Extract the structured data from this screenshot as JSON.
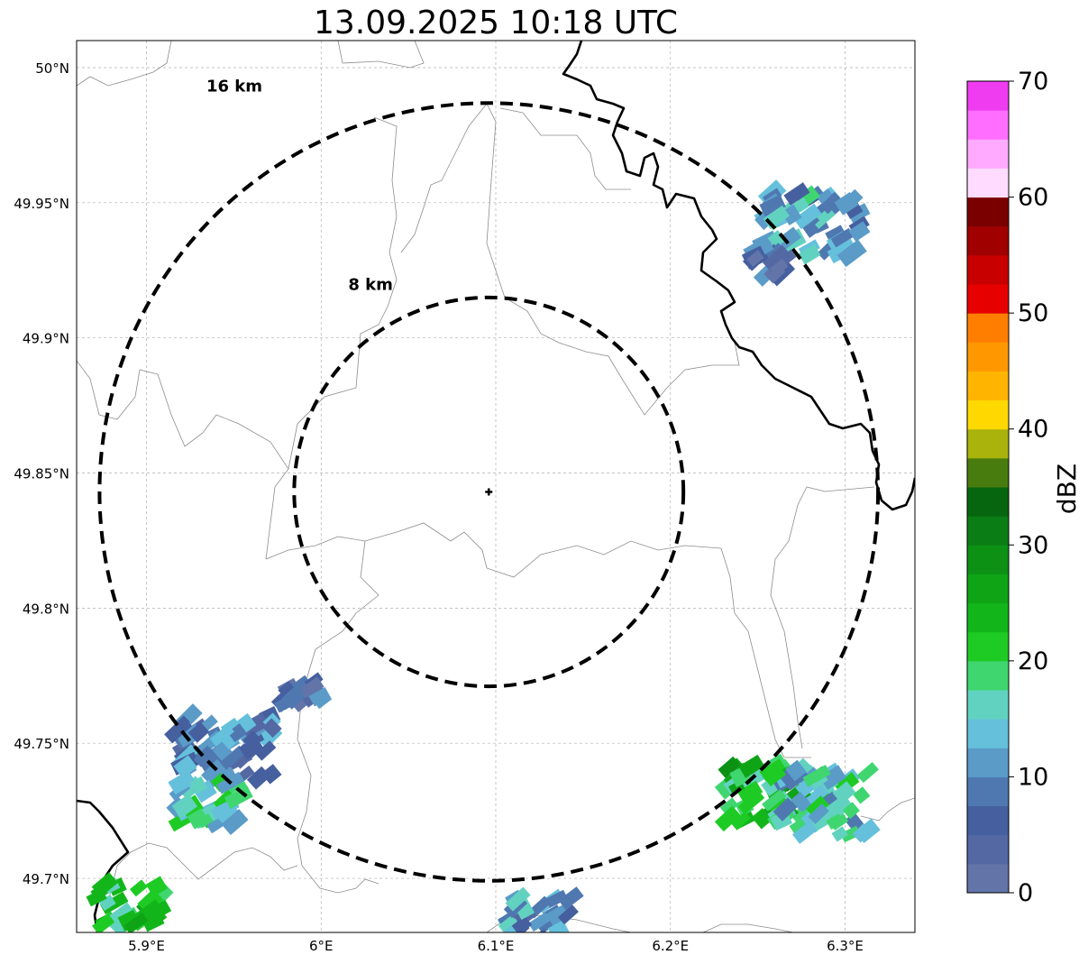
{
  "title": "13.09.2025 10:18 UTC",
  "map": {
    "lon_range": [
      5.86,
      6.34
    ],
    "lat_range": [
      49.68,
      50.01
    ],
    "center": {
      "lon": 6.096,
      "lat": 49.843
    },
    "lat_ticks": [
      {
        "value": 50.0,
        "label": "50°N"
      },
      {
        "value": 49.95,
        "label": "49.95°N"
      },
      {
        "value": 49.9,
        "label": "49.9°N"
      },
      {
        "value": 49.85,
        "label": "49.85°N"
      },
      {
        "value": 49.8,
        "label": "49.8°N"
      },
      {
        "value": 49.75,
        "label": "49.75°N"
      },
      {
        "value": 49.7,
        "label": "49.7°N"
      }
    ],
    "lon_ticks": [
      {
        "value": 5.9,
        "label": "5.9°E"
      },
      {
        "value": 6.0,
        "label": "6°E"
      },
      {
        "value": 6.1,
        "label": "6.1°E"
      },
      {
        "value": 6.2,
        "label": "6.2°E"
      },
      {
        "value": 6.3,
        "label": "6.3°E"
      }
    ],
    "range_rings": [
      {
        "km": 8,
        "label": "8 km"
      },
      {
        "km": 16,
        "label": "16 km"
      }
    ],
    "grid": true,
    "ring_color": "#000000",
    "border_color": "#000000",
    "admin_line_color": "#8c8c8c",
    "echo_clusters": [
      {
        "lon": 6.282,
        "lat": 49.942,
        "dbz": 12,
        "size": "large"
      },
      {
        "lon": 6.258,
        "lat": 49.928,
        "dbz": 6,
        "size": "small"
      },
      {
        "lon": 5.99,
        "lat": 49.769,
        "dbz": 6,
        "size": "small"
      },
      {
        "lon": 5.945,
        "lat": 49.748,
        "dbz": 8,
        "size": "large"
      },
      {
        "lon": 5.935,
        "lat": 49.728,
        "dbz": 16,
        "size": "medium"
      },
      {
        "lon": 6.26,
        "lat": 49.73,
        "dbz": 22,
        "size": "large"
      },
      {
        "lon": 6.285,
        "lat": 49.728,
        "dbz": 14,
        "size": "large"
      },
      {
        "lon": 5.89,
        "lat": 49.69,
        "dbz": 20,
        "size": "medium"
      },
      {
        "lon": 6.125,
        "lat": 49.685,
        "dbz": 10,
        "size": "medium"
      }
    ]
  },
  "colorbar": {
    "label": "dBZ",
    "min": 0,
    "max": 70,
    "step": 2.5,
    "tick_labels": [
      "0",
      "10",
      "20",
      "30",
      "40",
      "50",
      "60",
      "70"
    ],
    "colors": [
      "#6274a8",
      "#5468a4",
      "#455f9f",
      "#4f78b0",
      "#5a9bc8",
      "#65c0dc",
      "#62d2c0",
      "#3fd670",
      "#1ecb24",
      "#12b61a",
      "#0fa416",
      "#0c9115",
      "#0a7e15",
      "#066610",
      "#497c0e",
      "#a9b30c",
      "#ffd800",
      "#ffb400",
      "#ff9800",
      "#ff7e00",
      "#e60000",
      "#c80000",
      "#a00000",
      "#7a0000",
      "#ffdcff",
      "#ffaaff",
      "#ff6eff",
      "#f03cf0"
    ]
  }
}
